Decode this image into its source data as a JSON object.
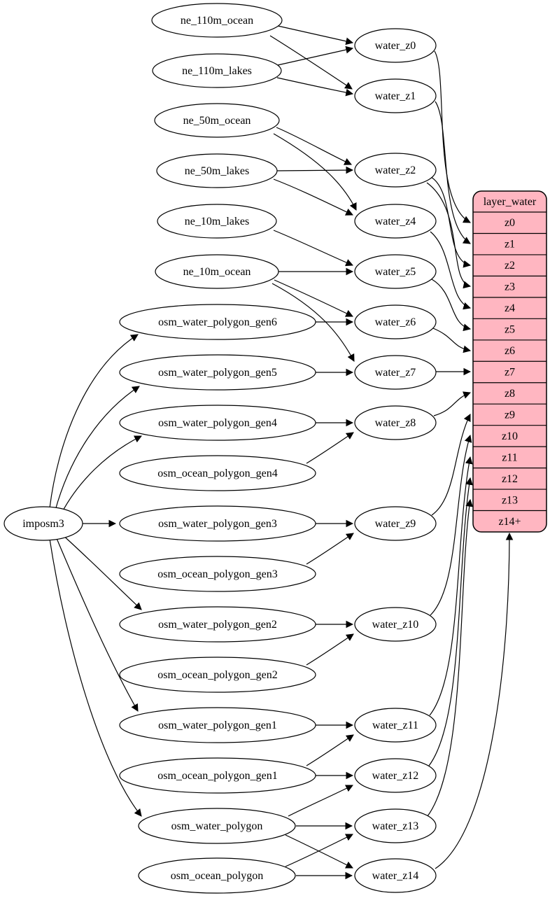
{
  "diagram": {
    "colors": {
      "table_fill": "#ffb6c1",
      "node_fill": "#ffffff",
      "stroke": "#000000",
      "background": "#ffffff"
    },
    "nodes": [
      {
        "id": "imposm3",
        "label": "imposm3"
      },
      {
        "id": "ne_110m_ocean",
        "label": "ne_110m_ocean"
      },
      {
        "id": "ne_110m_lakes",
        "label": "ne_110m_lakes"
      },
      {
        "id": "ne_50m_ocean",
        "label": "ne_50m_ocean"
      },
      {
        "id": "ne_50m_lakes",
        "label": "ne_50m_lakes"
      },
      {
        "id": "ne_10m_lakes",
        "label": "ne_10m_lakes"
      },
      {
        "id": "ne_10m_ocean",
        "label": "ne_10m_ocean"
      },
      {
        "id": "osm_water_polygon_gen6",
        "label": "osm_water_polygon_gen6"
      },
      {
        "id": "osm_water_polygon_gen5",
        "label": "osm_water_polygon_gen5"
      },
      {
        "id": "osm_water_polygon_gen4",
        "label": "osm_water_polygon_gen4"
      },
      {
        "id": "osm_ocean_polygon_gen4",
        "label": "osm_ocean_polygon_gen4"
      },
      {
        "id": "osm_water_polygon_gen3",
        "label": "osm_water_polygon_gen3"
      },
      {
        "id": "osm_ocean_polygon_gen3",
        "label": "osm_ocean_polygon_gen3"
      },
      {
        "id": "osm_water_polygon_gen2",
        "label": "osm_water_polygon_gen2"
      },
      {
        "id": "osm_ocean_polygon_gen2",
        "label": "osm_ocean_polygon_gen2"
      },
      {
        "id": "osm_water_polygon_gen1",
        "label": "osm_water_polygon_gen1"
      },
      {
        "id": "osm_ocean_polygon_gen1",
        "label": "osm_ocean_polygon_gen1"
      },
      {
        "id": "osm_water_polygon",
        "label": "osm_water_polygon"
      },
      {
        "id": "osm_ocean_polygon",
        "label": "osm_ocean_polygon"
      },
      {
        "id": "water_z0",
        "label": "water_z0"
      },
      {
        "id": "water_z1",
        "label": "water_z1"
      },
      {
        "id": "water_z2",
        "label": "water_z2"
      },
      {
        "id": "water_z4",
        "label": "water_z4"
      },
      {
        "id": "water_z5",
        "label": "water_z5"
      },
      {
        "id": "water_z6",
        "label": "water_z6"
      },
      {
        "id": "water_z7",
        "label": "water_z7"
      },
      {
        "id": "water_z8",
        "label": "water_z8"
      },
      {
        "id": "water_z9",
        "label": "water_z9"
      },
      {
        "id": "water_z10",
        "label": "water_z10"
      },
      {
        "id": "water_z11",
        "label": "water_z11"
      },
      {
        "id": "water_z12",
        "label": "water_z12"
      },
      {
        "id": "water_z13",
        "label": "water_z13"
      },
      {
        "id": "water_z14",
        "label": "water_z14"
      }
    ],
    "table": {
      "title": "layer_water",
      "rows": [
        "z0",
        "z1",
        "z2",
        "z3",
        "z4",
        "z5",
        "z6",
        "z7",
        "z8",
        "z9",
        "z10",
        "z11",
        "z12",
        "z13",
        "z14+"
      ]
    },
    "edges": [
      {
        "from": "ne_110m_ocean",
        "to": "water_z0"
      },
      {
        "from": "ne_110m_ocean",
        "to": "water_z1"
      },
      {
        "from": "ne_110m_lakes",
        "to": "water_z0"
      },
      {
        "from": "ne_110m_lakes",
        "to": "water_z1"
      },
      {
        "from": "ne_50m_ocean",
        "to": "water_z2"
      },
      {
        "from": "ne_50m_ocean",
        "to": "water_z4"
      },
      {
        "from": "ne_50m_lakes",
        "to": "water_z2"
      },
      {
        "from": "ne_50m_lakes",
        "to": "water_z4"
      },
      {
        "from": "ne_10m_lakes",
        "to": "water_z5"
      },
      {
        "from": "ne_10m_ocean",
        "to": "water_z5"
      },
      {
        "from": "ne_10m_ocean",
        "to": "water_z6"
      },
      {
        "from": "ne_10m_ocean",
        "to": "water_z7"
      },
      {
        "from": "imposm3",
        "to": "osm_water_polygon_gen6"
      },
      {
        "from": "imposm3",
        "to": "osm_water_polygon_gen5"
      },
      {
        "from": "imposm3",
        "to": "osm_water_polygon_gen4"
      },
      {
        "from": "imposm3",
        "to": "osm_water_polygon_gen3"
      },
      {
        "from": "imposm3",
        "to": "osm_water_polygon_gen2"
      },
      {
        "from": "imposm3",
        "to": "osm_water_polygon_gen1"
      },
      {
        "from": "imposm3",
        "to": "osm_water_polygon"
      },
      {
        "from": "osm_water_polygon_gen6",
        "to": "water_z6"
      },
      {
        "from": "osm_water_polygon_gen5",
        "to": "water_z7"
      },
      {
        "from": "osm_water_polygon_gen4",
        "to": "water_z8"
      },
      {
        "from": "osm_ocean_polygon_gen4",
        "to": "water_z8"
      },
      {
        "from": "osm_water_polygon_gen3",
        "to": "water_z9"
      },
      {
        "from": "osm_ocean_polygon_gen3",
        "to": "water_z9"
      },
      {
        "from": "osm_water_polygon_gen2",
        "to": "water_z10"
      },
      {
        "from": "osm_ocean_polygon_gen2",
        "to": "water_z10"
      },
      {
        "from": "osm_water_polygon_gen1",
        "to": "water_z11"
      },
      {
        "from": "osm_ocean_polygon_gen1",
        "to": "water_z11"
      },
      {
        "from": "osm_ocean_polygon_gen1",
        "to": "water_z12"
      },
      {
        "from": "osm_water_polygon",
        "to": "water_z12"
      },
      {
        "from": "osm_water_polygon",
        "to": "water_z13"
      },
      {
        "from": "osm_water_polygon",
        "to": "water_z14"
      },
      {
        "from": "osm_ocean_polygon",
        "to": "water_z13"
      },
      {
        "from": "osm_ocean_polygon",
        "to": "water_z14"
      },
      {
        "from": "water_z0",
        "to": "row_z0"
      },
      {
        "from": "water_z1",
        "to": "row_z1"
      },
      {
        "from": "water_z2",
        "to": "row_z2"
      },
      {
        "from": "water_z2",
        "to": "row_z3"
      },
      {
        "from": "water_z4",
        "to": "row_z4"
      },
      {
        "from": "water_z5",
        "to": "row_z5"
      },
      {
        "from": "water_z6",
        "to": "row_z6"
      },
      {
        "from": "water_z7",
        "to": "row_z7"
      },
      {
        "from": "water_z8",
        "to": "row_z8"
      },
      {
        "from": "water_z9",
        "to": "row_z9"
      },
      {
        "from": "water_z10",
        "to": "row_z10"
      },
      {
        "from": "water_z11",
        "to": "row_z11"
      },
      {
        "from": "water_z12",
        "to": "row_z12"
      },
      {
        "from": "water_z13",
        "to": "row_z13"
      },
      {
        "from": "water_z14",
        "to": "row_z14+"
      }
    ]
  }
}
